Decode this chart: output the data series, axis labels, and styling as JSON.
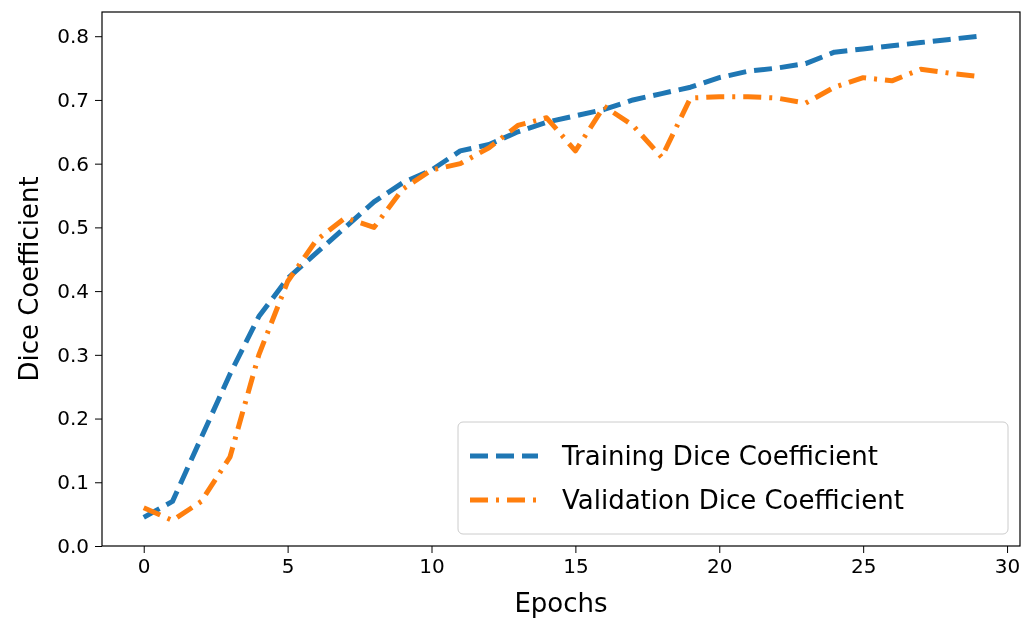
{
  "chart_data": {
    "type": "line",
    "xlabel": "Epochs",
    "ylabel": "Dice Coefficient",
    "x": [
      0,
      1,
      2,
      3,
      4,
      5,
      6,
      7,
      8,
      9,
      10,
      11,
      12,
      13,
      14,
      15,
      16,
      17,
      18,
      19,
      20,
      21,
      22,
      23,
      24,
      25,
      26,
      27,
      28,
      29
    ],
    "series": [
      {
        "name": "Training Dice Coefficient",
        "color": "#1f77b4",
        "line_style": "dashed",
        "values": [
          0.045,
          0.07,
          0.17,
          0.27,
          0.36,
          0.42,
          0.46,
          0.5,
          0.54,
          0.57,
          0.59,
          0.62,
          0.63,
          0.65,
          0.665,
          0.675,
          0.685,
          0.7,
          0.71,
          0.72,
          0.735,
          0.745,
          0.75,
          0.757,
          0.775,
          0.78,
          0.785,
          0.79,
          0.795,
          0.8
        ]
      },
      {
        "name": "Validation Dice Coefficient",
        "color": "#ff7f0e",
        "line_style": "dashdot",
        "values": [
          0.06,
          0.04,
          0.07,
          0.14,
          0.3,
          0.415,
          0.48,
          0.515,
          0.5,
          0.56,
          0.59,
          0.6,
          0.625,
          0.66,
          0.672,
          0.62,
          0.69,
          0.66,
          0.61,
          0.703,
          0.705,
          0.705,
          0.703,
          0.695,
          0.72,
          0.735,
          0.73,
          0.748,
          0.742,
          0.737
        ]
      }
    ],
    "xlim": [
      -1.45,
      30.45
    ],
    "ylim": [
      0,
      0.838
    ],
    "xticks": [
      0,
      5,
      10,
      15,
      20,
      25,
      30
    ],
    "yticks": [
      {
        "value": 0,
        "label": "0.0"
      },
      0.1,
      0.2,
      0.3,
      0.4,
      0.5,
      0.6,
      0.7,
      0.8
    ],
    "legend": "bottom right",
    "grid": false
  }
}
